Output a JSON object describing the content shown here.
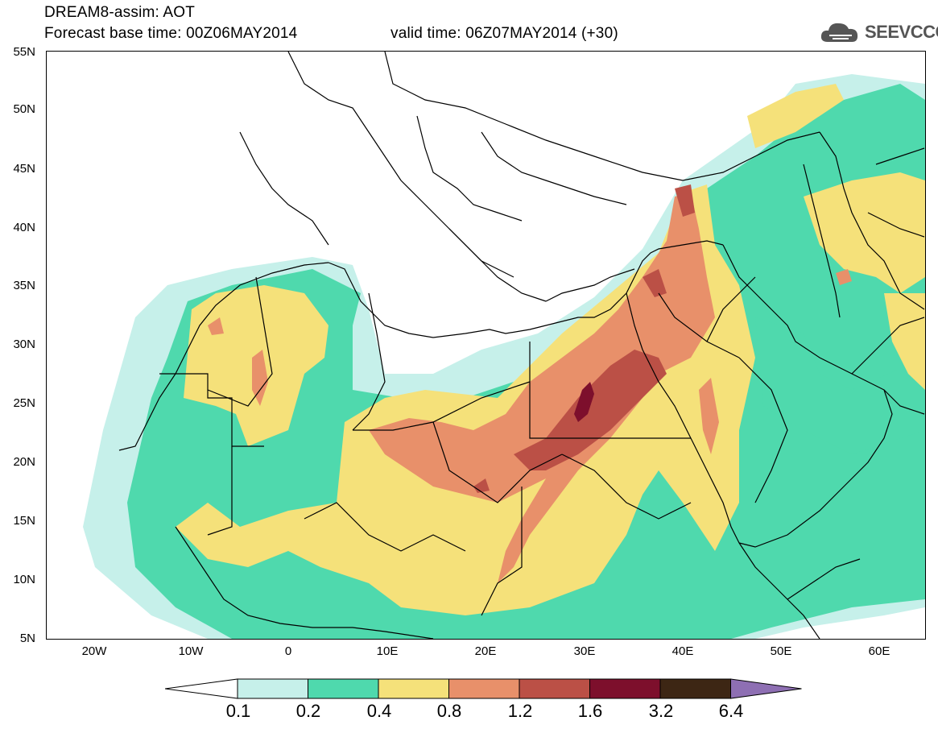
{
  "header": {
    "line1": "DREAM8-assim: AOT",
    "line2": "Forecast base time: 00Z06MAY2014",
    "line3": "valid time: 06Z07MAY2014 (+30)",
    "logo": "SEEVCCC"
  },
  "lat_labels": [
    "55N",
    "50N",
    "45N",
    "40N",
    "35N",
    "30N",
    "25N",
    "20N",
    "15N",
    "10N",
    "5N"
  ],
  "lon_labels": [
    "20W",
    "10W",
    "0",
    "10E",
    "20E",
    "30E",
    "40E",
    "50E",
    "60E"
  ],
  "colorbar": {
    "labels": [
      "0.1",
      "0.2",
      "0.4",
      "0.8",
      "1.2",
      "1.6",
      "3.2",
      "6.4"
    ],
    "colors": [
      "#ffffff",
      "#c6f0ea",
      "#4fd9ad",
      "#f5e17a",
      "#e8906a",
      "#bb5046",
      "#7d0f2c",
      "#3d2614",
      "#8e6fb3"
    ]
  },
  "palette": {
    "l1": "#c6f0ea",
    "l2": "#4fd9ad",
    "l3": "#f5e17a",
    "l4": "#e8906a",
    "l5": "#bb5046",
    "l6": "#7d0f2c"
  }
}
